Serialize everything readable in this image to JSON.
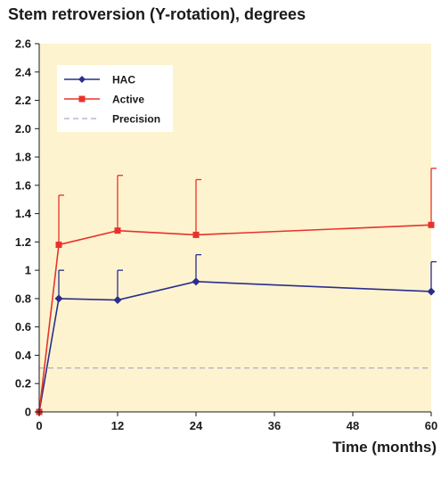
{
  "chart_data": {
    "type": "line",
    "title": "Stem retroversion (Y-rotation), degrees",
    "xlabel": "Time (months)",
    "ylabel": "",
    "xlim": [
      0,
      60
    ],
    "ylim": [
      0,
      2.6
    ],
    "x_ticks": [
      0,
      12,
      24,
      36,
      48,
      60
    ],
    "x_tick_labels": [
      "0",
      "12",
      "24",
      "36",
      "48",
      "60"
    ],
    "y_ticks": [
      0,
      0.2,
      0.4,
      0.6,
      0.8,
      1.0,
      1.2,
      1.4,
      1.6,
      1.8,
      2.0,
      2.2,
      2.4,
      2.6
    ],
    "y_tick_labels": [
      "0",
      "0.2",
      "0.4",
      "0.6",
      "0.8",
      "1",
      "1.2",
      "1.4",
      "1.6",
      "1.8",
      "2.0",
      "2.2",
      "2.4",
      "2.6"
    ],
    "grid": false,
    "legend_position": "top-left",
    "plot_background": "#fdf3cf",
    "series": [
      {
        "name": "HAC",
        "color": "#2b2d8e",
        "marker": "diamond",
        "x": [
          0,
          3,
          12,
          24,
          60
        ],
        "values": [
          0,
          0.8,
          0.79,
          0.92,
          0.85
        ],
        "error_upper": [
          null,
          1.0,
          1.0,
          1.11,
          1.06
        ]
      },
      {
        "name": "Active",
        "color": "#e8322b",
        "marker": "square",
        "x": [
          0,
          3,
          12,
          24,
          60
        ],
        "values": [
          0,
          1.18,
          1.28,
          1.25,
          1.32
        ],
        "error_upper": [
          null,
          1.53,
          1.67,
          1.64,
          1.72
        ]
      }
    ],
    "reference_lines": [
      {
        "name": "Precision",
        "y": 0.31,
        "color": "#b9b9c9",
        "style": "dashed"
      }
    ]
  }
}
